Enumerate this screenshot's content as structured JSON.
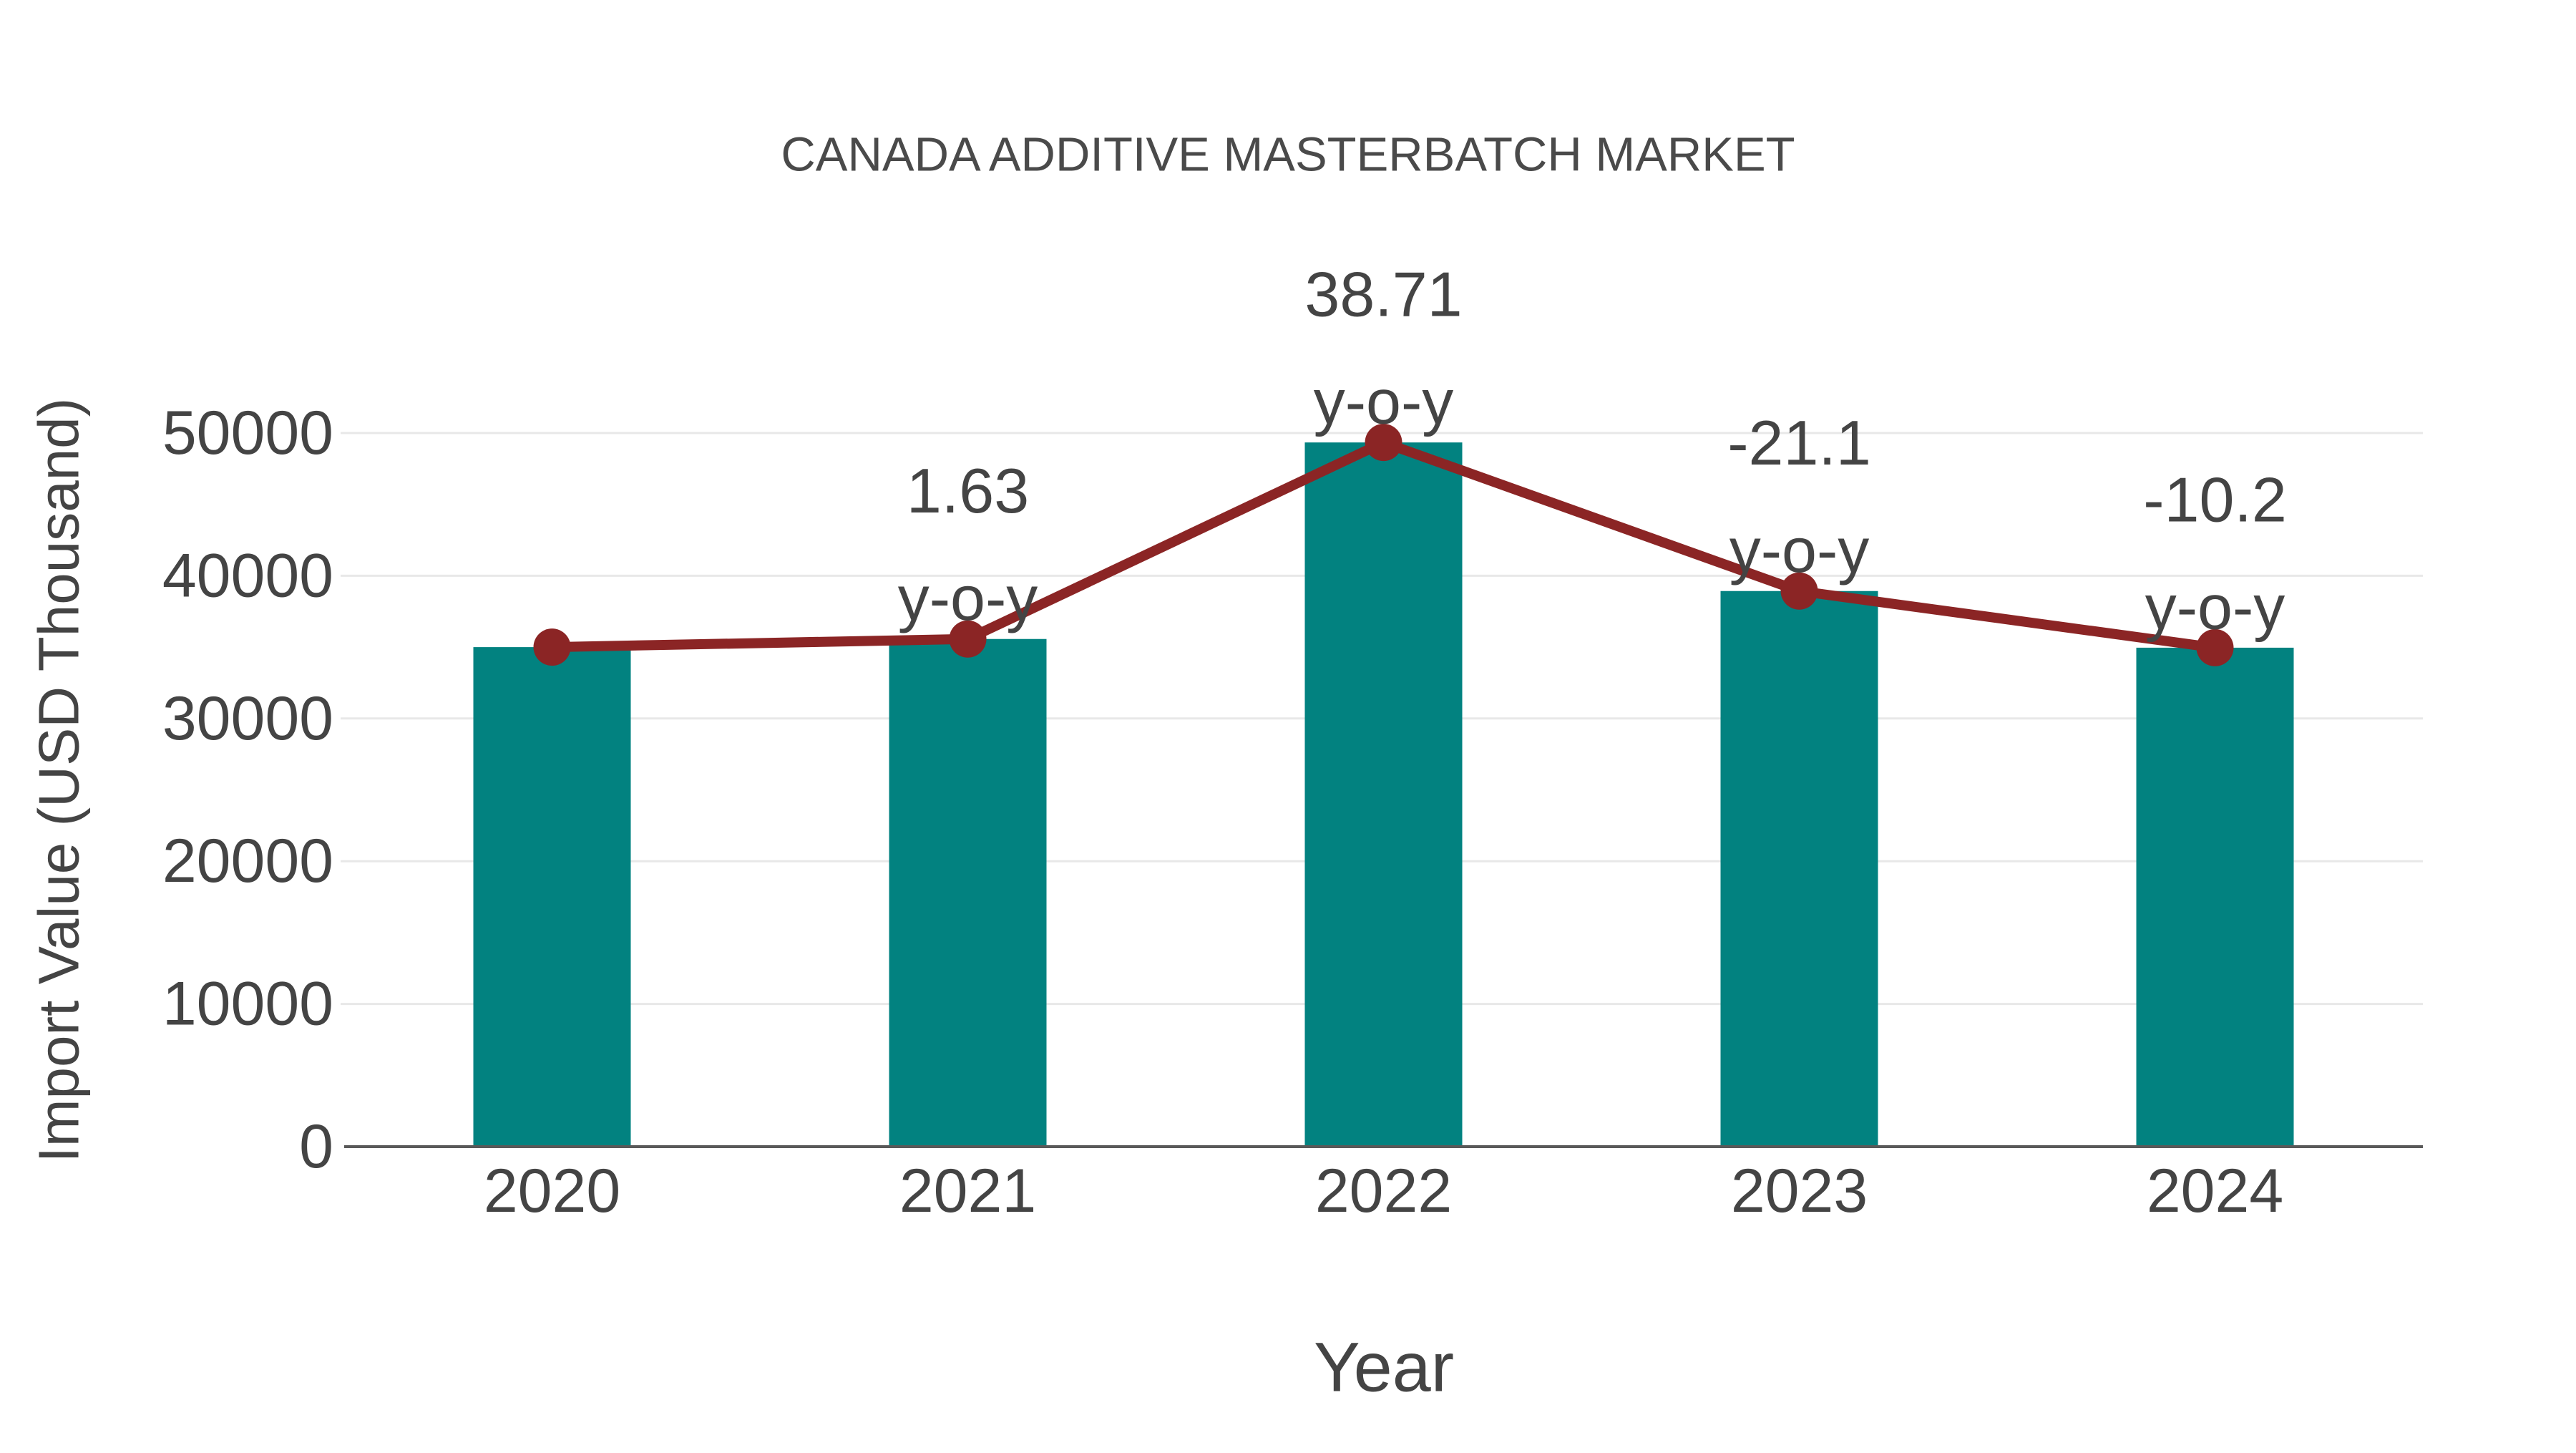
{
  "title": "CANADA ADDITIVE MASTERBATCH MARKET",
  "chart_data": {
    "type": "bar",
    "title": "CANADA ADDITIVE MASTERBATCH MARKET",
    "xlabel": "Year",
    "ylabel": "Import Value (USD Thousand)",
    "categories": [
      "2020",
      "2021",
      "2022",
      "2023",
      "2024"
    ],
    "series": [
      {
        "name": "Import Value (USD Thousand)",
        "type": "bar",
        "color": "#028280",
        "values": [
          35000,
          35570,
          49340,
          38930,
          34960
        ]
      },
      {
        "name": "Year-over-year trend",
        "type": "line",
        "color": "#8B2525",
        "values": [
          35000,
          35570,
          49340,
          38930,
          34960
        ]
      }
    ],
    "annotations": [
      {
        "category": "2021",
        "value": "1.63",
        "suffix": "y-o-y"
      },
      {
        "category": "2022",
        "value": "38.71",
        "suffix": "y-o-y"
      },
      {
        "category": "2023",
        "value": "-21.1",
        "suffix": "y-o-y"
      },
      {
        "category": "2024",
        "value": "-10.2",
        "suffix": "y-o-y"
      }
    ],
    "ytick_labels": [
      "0",
      "10000",
      "20000",
      "30000",
      "40000",
      "50000"
    ],
    "yticks": [
      0,
      10000,
      20000,
      30000,
      40000,
      50000
    ],
    "ylim": [
      0,
      52000
    ],
    "grid": true,
    "legend_position": "none",
    "colors": {
      "bar": "#028280",
      "line": "#8B2525",
      "marker": "#8B2525",
      "grid": "#e8e8e8",
      "axis": "#595959",
      "tick_text": "#444444",
      "title_text": "#4a4a4a"
    }
  }
}
